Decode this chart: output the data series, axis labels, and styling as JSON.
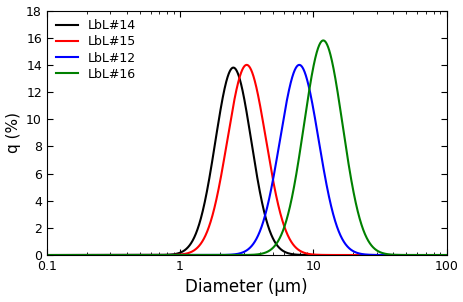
{
  "series": [
    {
      "label": "LbL#14",
      "color": "#000000",
      "mu_log10": 0.4,
      "sigma_log10": 0.135,
      "peak": 13.8
    },
    {
      "label": "LbL#15",
      "color": "#ff0000",
      "mu_log10": 0.5,
      "sigma_log10": 0.145,
      "peak": 14.0
    },
    {
      "label": "LbL#12",
      "color": "#0000ff",
      "mu_log10": 0.895,
      "sigma_log10": 0.145,
      "peak": 14.0
    },
    {
      "label": "LbL#16",
      "color": "#008000",
      "mu_log10": 1.075,
      "sigma_log10": 0.145,
      "peak": 15.8
    }
  ],
  "xlabel": "Diameter (μm)",
  "ylabel": "q (%)",
  "xlim": [
    0.1,
    100
  ],
  "ylim": [
    0,
    18
  ],
  "yticks": [
    0,
    2,
    4,
    6,
    8,
    10,
    12,
    14,
    16,
    18
  ],
  "background_color": "#ffffff",
  "legend_loc": "upper left",
  "legend_fontsize": 9,
  "xlabel_fontsize": 12,
  "ylabel_fontsize": 11,
  "tick_fontsize": 9,
  "linewidth": 1.5
}
